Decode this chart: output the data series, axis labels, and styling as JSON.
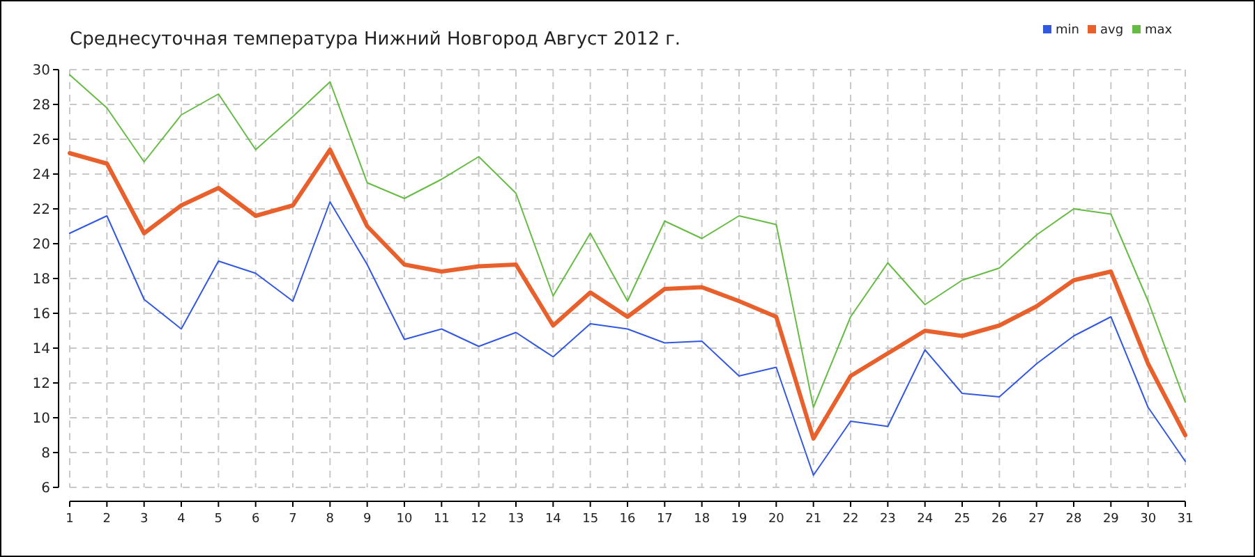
{
  "chart_data": {
    "type": "line",
    "title": "Среднесуточная температура Нижний Новгород  Август 2012 г.",
    "x": [
      1,
      2,
      3,
      4,
      5,
      6,
      7,
      8,
      9,
      10,
      11,
      12,
      13,
      14,
      15,
      16,
      17,
      18,
      19,
      20,
      21,
      22,
      23,
      24,
      25,
      26,
      27,
      28,
      29,
      30,
      31
    ],
    "xlim": [
      1,
      31
    ],
    "xticks": [
      1,
      2,
      3,
      4,
      5,
      6,
      7,
      8,
      9,
      10,
      11,
      12,
      13,
      14,
      15,
      16,
      17,
      18,
      19,
      20,
      21,
      22,
      23,
      24,
      25,
      26,
      27,
      28,
      29,
      30,
      31
    ],
    "ylim": [
      6,
      30
    ],
    "yticks": [
      6,
      8,
      10,
      12,
      14,
      16,
      18,
      20,
      22,
      24,
      26,
      28,
      30
    ],
    "grid": true,
    "legend": "top right",
    "marker": "none",
    "series": [
      {
        "name": "min",
        "color": "#3358e0",
        "values": [
          20.6,
          21.6,
          16.8,
          15.1,
          19.0,
          18.3,
          16.7,
          22.4,
          18.8,
          14.5,
          15.1,
          14.1,
          14.9,
          13.5,
          15.4,
          15.1,
          14.3,
          14.4,
          12.4,
          12.9,
          6.7,
          9.8,
          9.5,
          13.9,
          11.4,
          11.2,
          13.1,
          14.7,
          15.8,
          10.6,
          7.5
        ]
      },
      {
        "name": "avg",
        "color": "#e8612c",
        "values": [
          25.2,
          24.6,
          20.6,
          22.2,
          23.2,
          21.6,
          22.2,
          25.4,
          21.0,
          18.8,
          18.4,
          18.7,
          18.8,
          15.3,
          17.2,
          15.8,
          17.4,
          17.5,
          16.7,
          15.8,
          8.8,
          12.4,
          13.7,
          15.0,
          14.7,
          15.3,
          16.4,
          17.9,
          18.4,
          13.1,
          9.0
        ]
      },
      {
        "name": "max",
        "color": "#66bb44",
        "values": [
          29.7,
          27.8,
          24.7,
          27.4,
          28.6,
          25.4,
          27.3,
          29.3,
          23.5,
          22.6,
          23.7,
          25.0,
          22.9,
          17.0,
          20.6,
          16.7,
          21.3,
          20.3,
          21.6,
          21.1,
          10.6,
          15.8,
          18.9,
          16.5,
          17.9,
          18.6,
          20.5,
          22.0,
          21.7,
          16.7,
          10.9
        ]
      }
    ]
  }
}
